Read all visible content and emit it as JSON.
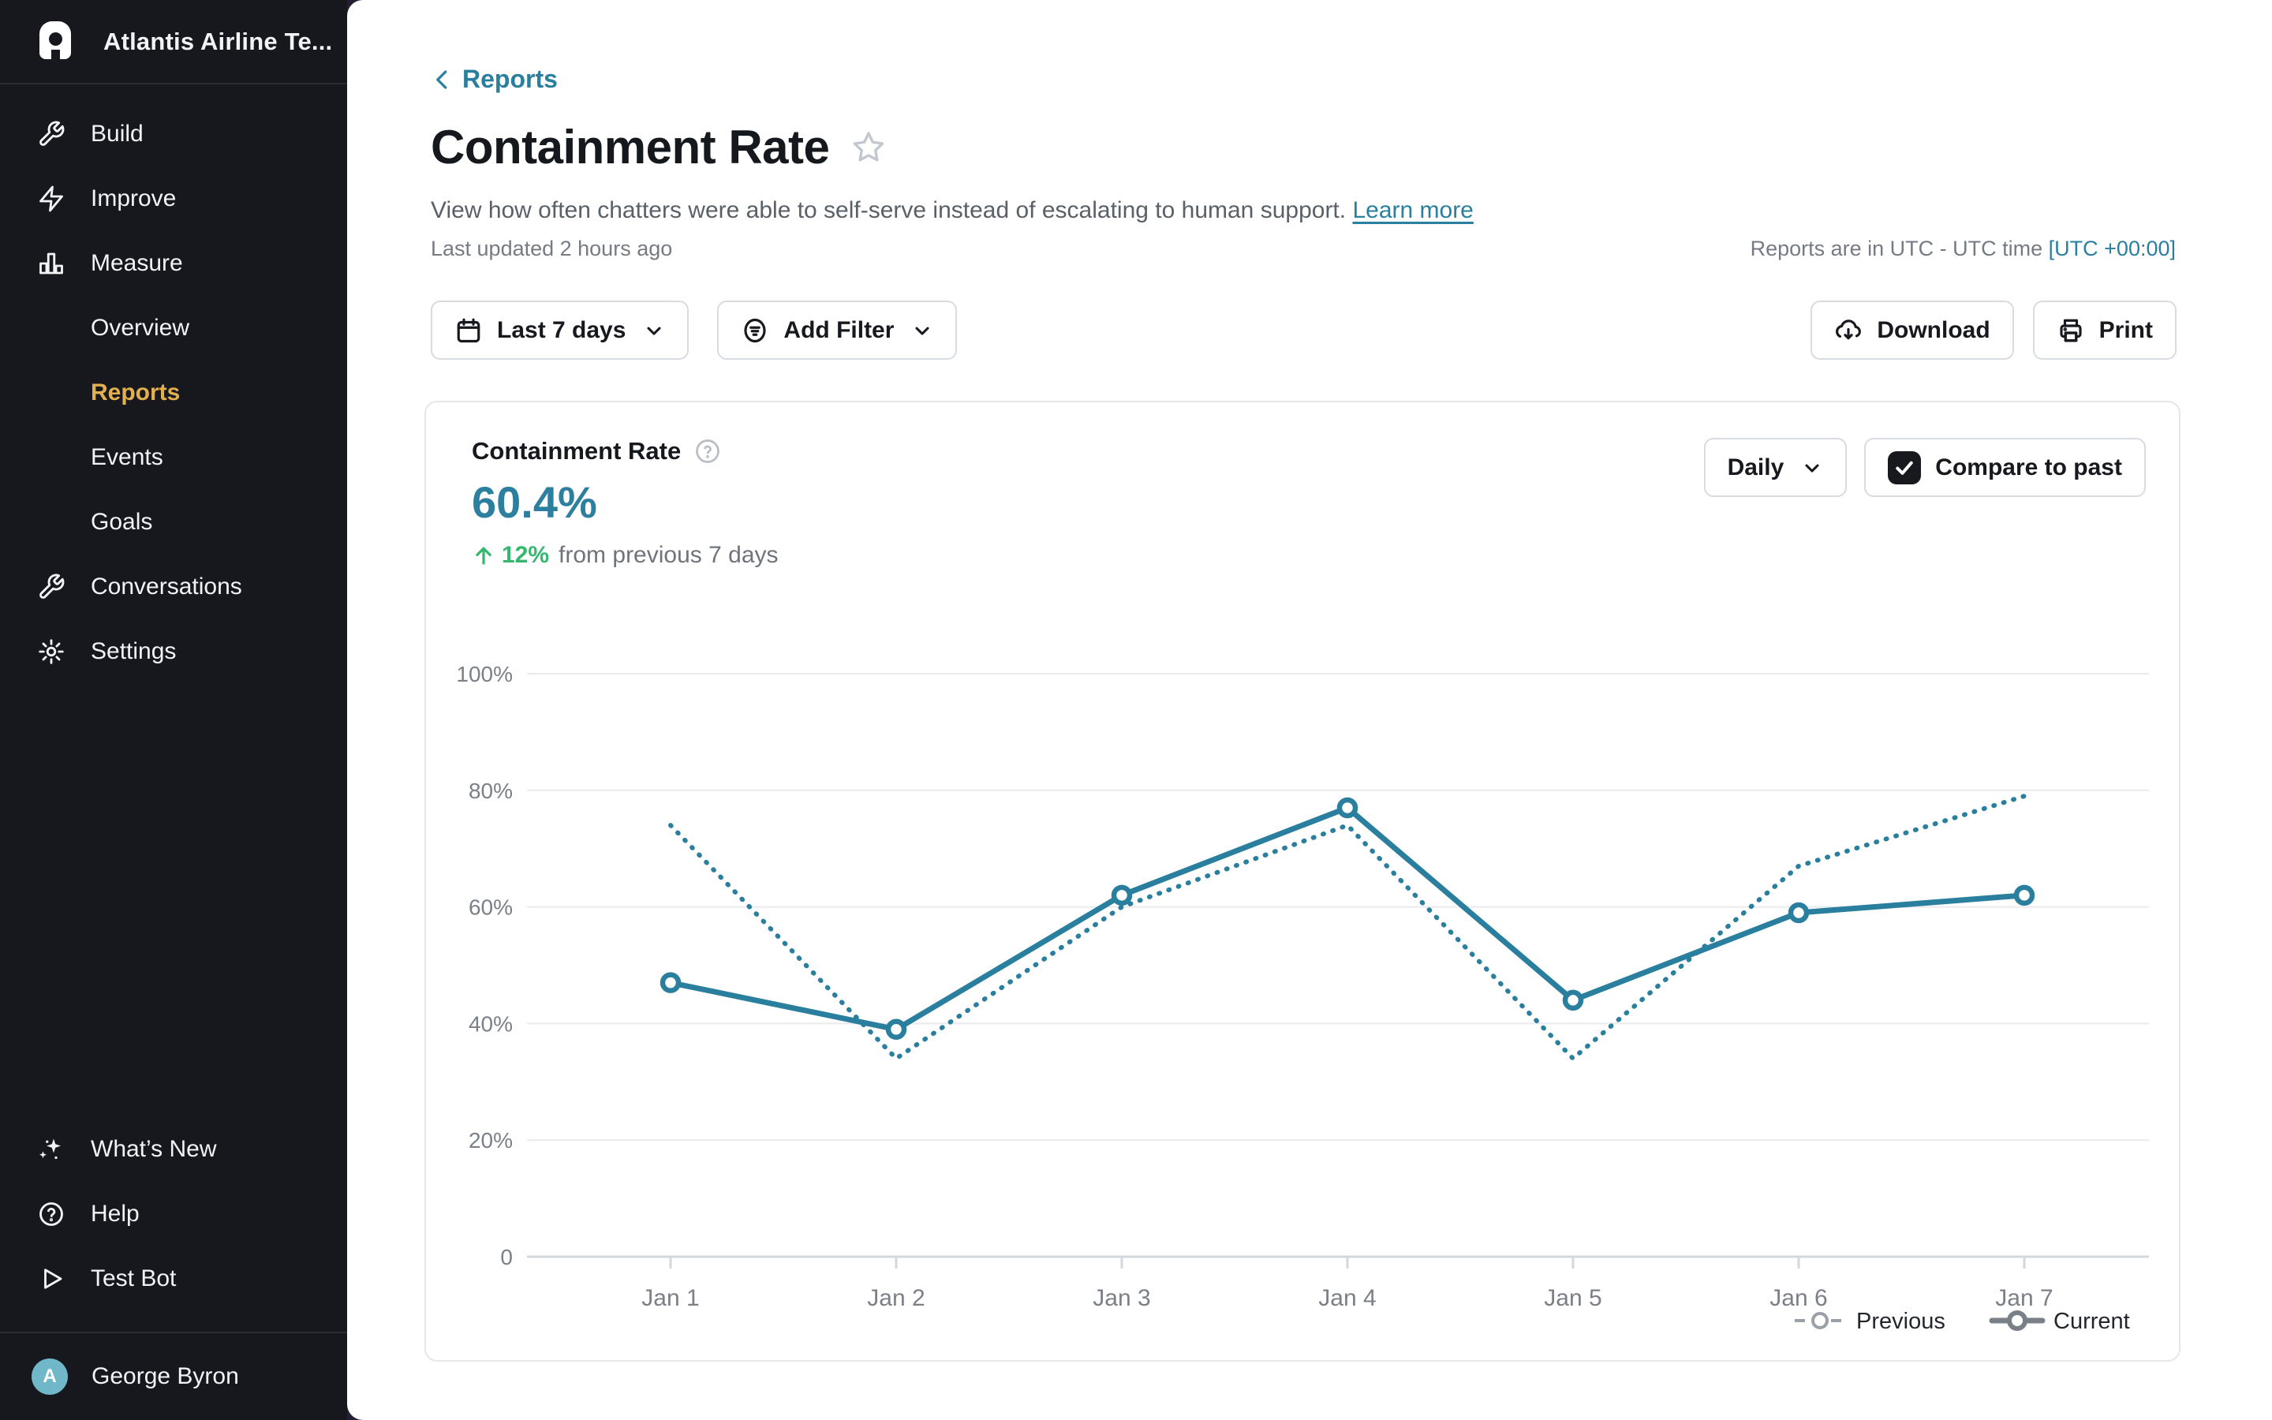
{
  "sidebar": {
    "workspace": "Atlantis Airline Te...",
    "items": [
      {
        "label": "Build",
        "icon": "wrench-icon",
        "active": false,
        "sub": false
      },
      {
        "label": "Improve",
        "icon": "lightning-icon",
        "active": false,
        "sub": false
      },
      {
        "label": "Measure",
        "icon": "bar-chart-icon",
        "active": false,
        "sub": false
      },
      {
        "label": "Overview",
        "icon": "",
        "active": false,
        "sub": true
      },
      {
        "label": "Reports",
        "icon": "",
        "active": true,
        "sub": true
      },
      {
        "label": "Events",
        "icon": "",
        "active": false,
        "sub": true
      },
      {
        "label": "Goals",
        "icon": "",
        "active": false,
        "sub": true
      },
      {
        "label": "Conversations",
        "icon": "wrench-icon",
        "active": false,
        "sub": false
      },
      {
        "label": "Settings",
        "icon": "gear-icon",
        "active": false,
        "sub": false
      }
    ],
    "footer_items": [
      {
        "label": "What’s New",
        "icon": "sparkles-icon"
      },
      {
        "label": "Help",
        "icon": "help-circle-icon"
      },
      {
        "label": "Test Bot",
        "icon": "play-icon"
      }
    ],
    "user": {
      "name": "George Byron",
      "avatar_initial": "A"
    }
  },
  "header": {
    "back_label": "Reports",
    "title": "Containment Rate",
    "description": "View how often chatters were able to self-serve instead of escalating to human support.",
    "learn_more_label": "Learn more",
    "last_updated": "Last updated 2 hours ago",
    "timezone_note": "Reports are in UTC - UTC time",
    "timezone_value": "[UTC +00:00]"
  },
  "toolbar": {
    "date_range_label": "Last 7 days",
    "add_filter_label": "Add Filter",
    "download_label": "Download",
    "print_label": "Print"
  },
  "card": {
    "metric_title": "Containment Rate",
    "metric_value": "60.4%",
    "trend_value": "12%",
    "trend_text": "from previous 7 days",
    "granularity_label": "Daily",
    "compare_label": "Compare to past",
    "compare_checked": true
  },
  "chart_data": {
    "type": "line",
    "title": "Containment Rate",
    "x": [
      "Jan 1",
      "Jan 2",
      "Jan 3",
      "Jan 4",
      "Jan 5",
      "Jan 6",
      "Jan 7"
    ],
    "series": [
      {
        "name": "Previous",
        "style": "dotted",
        "values": [
          74,
          34,
          60,
          74,
          34,
          67,
          79
        ]
      },
      {
        "name": "Current",
        "style": "solid",
        "values": [
          47,
          39,
          62,
          77,
          44,
          59,
          62
        ]
      }
    ],
    "y_ticks": [
      100,
      80,
      60,
      40,
      20,
      0
    ],
    "y_tick_labels": [
      "100%",
      "80%",
      "60%",
      "40%",
      "20%",
      "0"
    ],
    "ylim": [
      0,
      100
    ],
    "grid": true,
    "legend_position": "bottom-right",
    "legend": [
      "Previous",
      "Current"
    ],
    "line_color": "#2a7f9e",
    "legend_previous_color": "#9aa0a7",
    "legend_current_color": "#7a8087",
    "axis_label_color": "#7b8088",
    "grid_color": "#e9ebee"
  },
  "colors": {
    "accent_teal": "#2a7f9e",
    "trend_green": "#34b86d",
    "active_gold": "#e4b04e",
    "sidebar_bg": "#16181e",
    "avatar_bg": "#6fb7c9"
  }
}
